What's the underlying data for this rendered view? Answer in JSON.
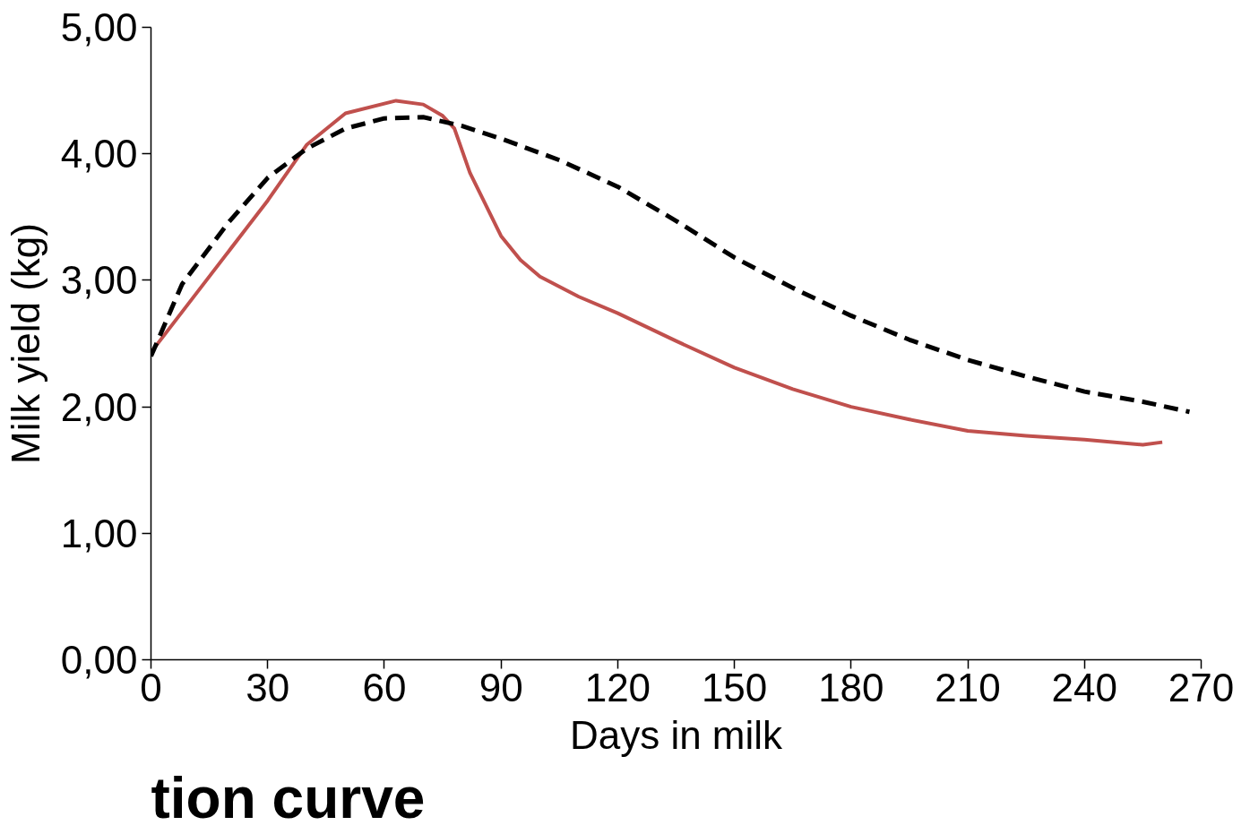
{
  "chart_data": {
    "type": "line",
    "xlabel": "Days in milk",
    "ylabel": "Milk yield (kg)",
    "annotations": [
      "tion curve"
    ],
    "xlim": [
      0,
      270
    ],
    "xticks": [
      0,
      30,
      60,
      90,
      120,
      150,
      180,
      210,
      240,
      270
    ],
    "ylim": [
      0,
      5
    ],
    "yticks": [
      {
        "value": 0,
        "label": "0,00"
      },
      {
        "value": 1,
        "label": "1,00"
      },
      {
        "value": 2,
        "label": "2,00"
      },
      {
        "value": 3,
        "label": "3,00"
      },
      {
        "value": 4,
        "label": "4,00"
      },
      {
        "value": 5,
        "label": "5,00"
      }
    ],
    "grid": false,
    "marker": "none",
    "series": [
      {
        "color": "#c0504d",
        "line_style": "solid",
        "x": [
          0,
          10,
          20,
          30,
          40,
          50,
          63,
          70,
          75,
          78,
          82,
          86,
          90,
          95,
          100,
          110,
          120,
          135,
          150,
          165,
          180,
          195,
          210,
          225,
          240,
          255,
          260
        ],
        "values": [
          2.43,
          2.83,
          3.23,
          3.63,
          4.07,
          4.32,
          4.42,
          4.39,
          4.3,
          4.2,
          3.85,
          3.6,
          3.35,
          3.16,
          3.03,
          2.87,
          2.74,
          2.52,
          2.31,
          2.14,
          2.0,
          1.9,
          1.81,
          1.77,
          1.74,
          1.7,
          1.72
        ]
      },
      {
        "color": "#000000",
        "line_style": "dashed",
        "x": [
          0,
          8,
          20,
          30,
          40,
          50,
          60,
          70,
          80,
          90,
          105,
          120,
          135,
          150,
          165,
          180,
          195,
          210,
          225,
          240,
          255,
          267
        ],
        "values": [
          2.4,
          2.97,
          3.46,
          3.81,
          4.04,
          4.2,
          4.28,
          4.29,
          4.22,
          4.12,
          3.95,
          3.74,
          3.47,
          3.18,
          2.94,
          2.72,
          2.53,
          2.37,
          2.24,
          2.12,
          2.04,
          1.96
        ]
      }
    ]
  }
}
